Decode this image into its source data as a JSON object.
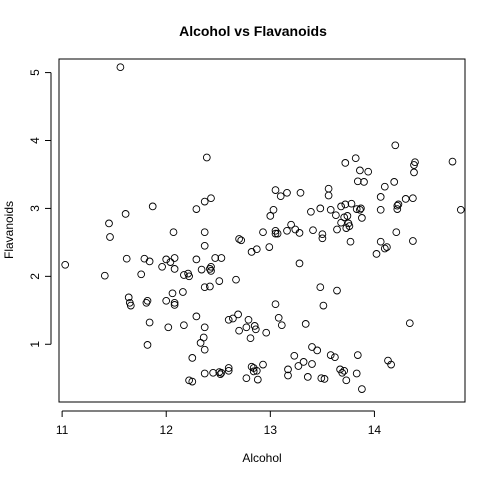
{
  "chart_data": {
    "type": "scatter",
    "title": "Alcohol vs Flavanoids",
    "xlabel": "Alcohol",
    "ylabel": "Flavanoids",
    "xlim": [
      10.97,
      14.87
    ],
    "ylim": [
      0.15,
      5.2
    ],
    "x_ticks": [
      "11",
      "12",
      "13",
      "14"
    ],
    "y_ticks": [
      "1",
      "2",
      "3",
      "4",
      "5"
    ],
    "grid": false,
    "points": [
      [
        11.03,
        2.17
      ],
      [
        11.41,
        2.01
      ],
      [
        11.45,
        2.78
      ],
      [
        11.46,
        2.58
      ],
      [
        11.56,
        5.08
      ],
      [
        11.61,
        2.92
      ],
      [
        11.62,
        2.26
      ],
      [
        11.64,
        1.69
      ],
      [
        11.65,
        1.61
      ],
      [
        11.66,
        1.57
      ],
      [
        11.76,
        2.03
      ],
      [
        11.79,
        2.26
      ],
      [
        11.81,
        1.61
      ],
      [
        11.82,
        1.64
      ],
      [
        11.82,
        0.99
      ],
      [
        11.84,
        1.32
      ],
      [
        11.84,
        2.22
      ],
      [
        11.87,
        3.03
      ],
      [
        11.96,
        2.14
      ],
      [
        12.0,
        1.64
      ],
      [
        12.0,
        2.25
      ],
      [
        12.02,
        1.25
      ],
      [
        12.04,
        2.21
      ],
      [
        12.06,
        1.75
      ],
      [
        12.07,
        2.65
      ],
      [
        12.08,
        1.58
      ],
      [
        12.08,
        2.27
      ],
      [
        12.08,
        1.61
      ],
      [
        12.08,
        2.11
      ],
      [
        12.16,
        1.77
      ],
      [
        12.17,
        1.28
      ],
      [
        12.17,
        2.02
      ],
      [
        12.21,
        2.04
      ],
      [
        12.22,
        2.0
      ],
      [
        12.22,
        0.47
      ],
      [
        12.25,
        0.8
      ],
      [
        12.25,
        0.45
      ],
      [
        12.29,
        1.41
      ],
      [
        12.29,
        2.25
      ],
      [
        12.29,
        2.99
      ],
      [
        12.33,
        1.02
      ],
      [
        12.34,
        2.1
      ],
      [
        12.36,
        1.1
      ],
      [
        12.37,
        1.84
      ],
      [
        12.37,
        2.65
      ],
      [
        12.37,
        3.1
      ],
      [
        12.37,
        1.25
      ],
      [
        12.37,
        0.92
      ],
      [
        12.37,
        0.57
      ],
      [
        12.37,
        2.45
      ],
      [
        12.39,
        3.75
      ],
      [
        12.42,
        1.85
      ],
      [
        12.42,
        2.11
      ],
      [
        12.43,
        2.14
      ],
      [
        12.43,
        2.08
      ],
      [
        12.43,
        3.15
      ],
      [
        12.45,
        0.58
      ],
      [
        12.47,
        2.27
      ],
      [
        12.51,
        0.59
      ],
      [
        12.51,
        1.93
      ],
      [
        12.52,
        0.56
      ],
      [
        12.53,
        2.27
      ],
      [
        12.53,
        0.58
      ],
      [
        12.6,
        0.65
      ],
      [
        12.6,
        0.61
      ],
      [
        12.6,
        1.36
      ],
      [
        12.64,
        1.38
      ],
      [
        12.67,
        1.95
      ],
      [
        12.69,
        1.44
      ],
      [
        12.7,
        2.55
      ],
      [
        12.7,
        1.2
      ],
      [
        12.72,
        2.53
      ],
      [
        12.77,
        1.25
      ],
      [
        12.77,
        0.5
      ],
      [
        12.79,
        1.36
      ],
      [
        12.81,
        1.09
      ],
      [
        12.82,
        0.67
      ],
      [
        12.82,
        2.36
      ],
      [
        12.84,
        0.65
      ],
      [
        12.84,
        0.6
      ],
      [
        12.85,
        1.27
      ],
      [
        12.86,
        1.22
      ],
      [
        12.87,
        0.61
      ],
      [
        12.87,
        2.4
      ],
      [
        12.88,
        0.48
      ],
      [
        12.93,
        0.7
      ],
      [
        12.93,
        2.65
      ],
      [
        12.96,
        1.17
      ],
      [
        12.99,
        2.43
      ],
      [
        13.0,
        2.89
      ],
      [
        13.03,
        2.98
      ],
      [
        13.05,
        3.27
      ],
      [
        13.05,
        2.67
      ],
      [
        13.05,
        1.59
      ],
      [
        13.05,
        2.63
      ],
      [
        13.07,
        2.63
      ],
      [
        13.08,
        1.39
      ],
      [
        13.1,
        3.18
      ],
      [
        13.11,
        1.28
      ],
      [
        13.16,
        2.67
      ],
      [
        13.16,
        3.23
      ],
      [
        13.17,
        0.63
      ],
      [
        13.17,
        0.54
      ],
      [
        13.2,
        2.76
      ],
      [
        13.23,
        0.83
      ],
      [
        13.24,
        2.69
      ],
      [
        13.27,
        0.68
      ],
      [
        13.28,
        2.64
      ],
      [
        13.28,
        2.19
      ],
      [
        13.29,
        3.23
      ],
      [
        13.32,
        0.74
      ],
      [
        13.34,
        1.3
      ],
      [
        13.36,
        0.52
      ],
      [
        13.39,
        2.95
      ],
      [
        13.4,
        0.71
      ],
      [
        13.4,
        0.96
      ],
      [
        13.41,
        2.68
      ],
      [
        13.45,
        0.91
      ],
      [
        13.48,
        3.0
      ],
      [
        13.48,
        1.84
      ],
      [
        13.49,
        0.5
      ],
      [
        13.5,
        2.56
      ],
      [
        13.5,
        2.62
      ],
      [
        13.51,
        1.57
      ],
      [
        13.52,
        0.49
      ],
      [
        13.56,
        3.29
      ],
      [
        13.56,
        3.19
      ],
      [
        13.58,
        0.84
      ],
      [
        13.58,
        2.98
      ],
      [
        13.62,
        0.81
      ],
      [
        13.63,
        2.9
      ],
      [
        13.64,
        2.69
      ],
      [
        13.64,
        1.79
      ],
      [
        13.67,
        0.63
      ],
      [
        13.68,
        2.79
      ],
      [
        13.68,
        3.03
      ],
      [
        13.69,
        0.58
      ],
      [
        13.71,
        0.61
      ],
      [
        13.71,
        2.87
      ],
      [
        13.72,
        3.06
      ],
      [
        13.72,
        3.67
      ],
      [
        13.73,
        0.47
      ],
      [
        13.73,
        2.71
      ],
      [
        13.74,
        2.89
      ],
      [
        13.75,
        2.78
      ],
      [
        13.76,
        2.74
      ],
      [
        13.77,
        2.51
      ],
      [
        13.78,
        3.07
      ],
      [
        13.82,
        3.74
      ],
      [
        13.83,
        0.57
      ],
      [
        13.83,
        2.99
      ],
      [
        13.84,
        3.4
      ],
      [
        13.84,
        0.84
      ],
      [
        13.86,
        2.98
      ],
      [
        13.86,
        3.56
      ],
      [
        13.87,
        3.0
      ],
      [
        13.88,
        0.34
      ],
      [
        13.88,
        2.86
      ],
      [
        13.9,
        3.39
      ],
      [
        13.94,
        3.54
      ],
      [
        14.02,
        2.33
      ],
      [
        14.06,
        2.51
      ],
      [
        14.06,
        3.17
      ],
      [
        14.06,
        2.98
      ],
      [
        14.1,
        2.41
      ],
      [
        14.1,
        3.32
      ],
      [
        14.12,
        2.43
      ],
      [
        14.13,
        0.76
      ],
      [
        14.16,
        0.7
      ],
      [
        14.19,
        3.39
      ],
      [
        14.2,
        3.93
      ],
      [
        14.21,
        2.65
      ],
      [
        14.22,
        2.99
      ],
      [
        14.22,
        3.04
      ],
      [
        14.23,
        3.06
      ],
      [
        14.3,
        3.14
      ],
      [
        14.34,
        1.31
      ],
      [
        14.37,
        3.15
      ],
      [
        14.37,
        2.52
      ],
      [
        14.38,
        3.64
      ],
      [
        14.38,
        3.53
      ],
      [
        14.39,
        3.68
      ],
      [
        14.75,
        3.69
      ],
      [
        14.83,
        2.98
      ]
    ]
  }
}
